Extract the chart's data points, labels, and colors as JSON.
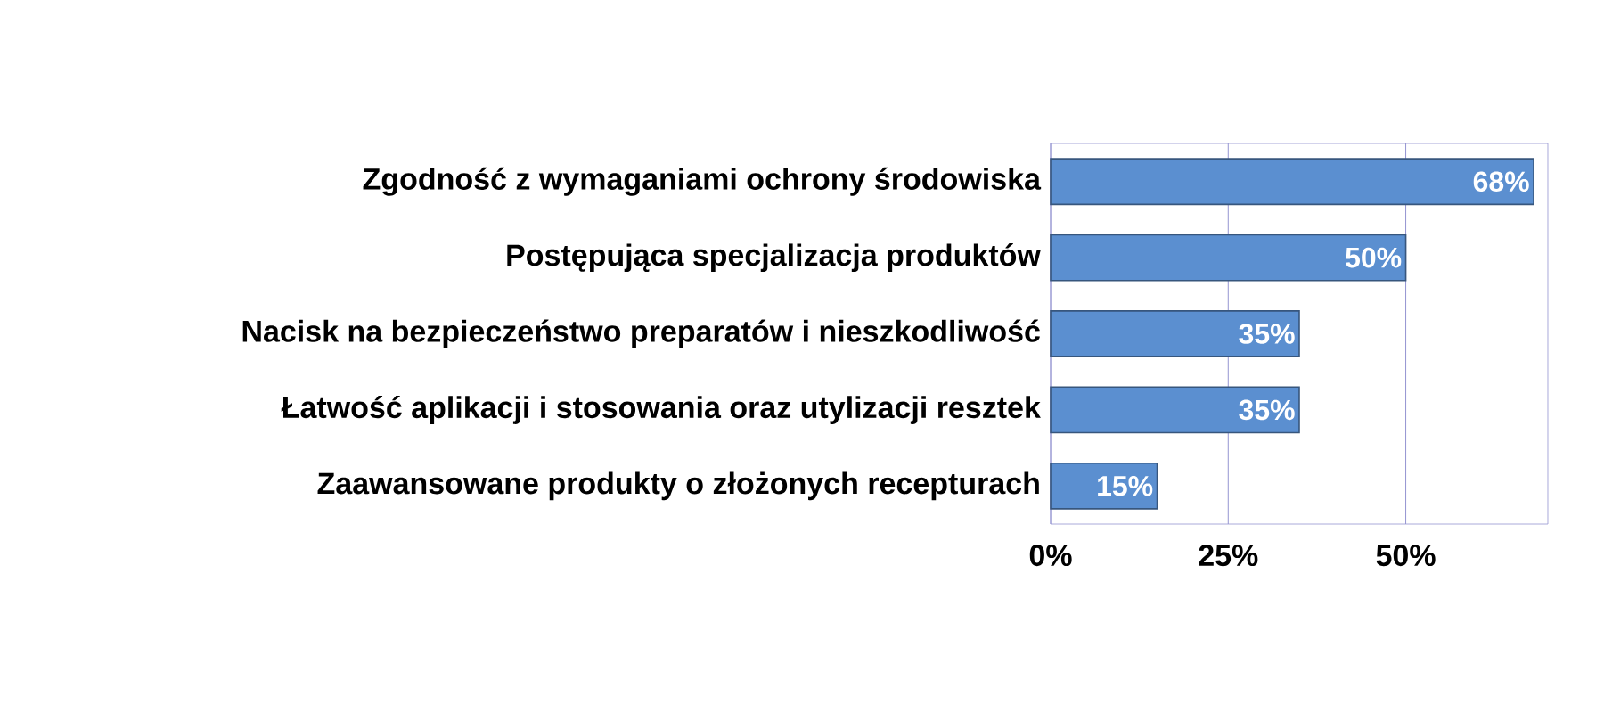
{
  "chart_data": {
    "type": "bar",
    "orientation": "horizontal",
    "categories": [
      "Zgodność z wymaganiami ochrony środowiska",
      "Postępująca specjalizacja produktów",
      "Nacisk na bezpieczeństwo preparatów i nieszkodliwość",
      "Łatwość aplikacji i stosowania oraz utylizacji resztek",
      "Zaawansowane produkty o złożonych recepturach"
    ],
    "values": [
      68,
      50,
      35,
      35,
      15
    ],
    "value_labels": [
      "68%",
      "50%",
      "35%",
      "35%",
      "15%"
    ],
    "color": "#5b8fd0",
    "xlim": [
      0,
      70
    ],
    "xticks": [
      {
        "value": 0,
        "label": "0%"
      },
      {
        "value": 25,
        "label": "25%"
      },
      {
        "value": 50,
        "label": "50%"
      }
    ],
    "grid": "x"
  }
}
